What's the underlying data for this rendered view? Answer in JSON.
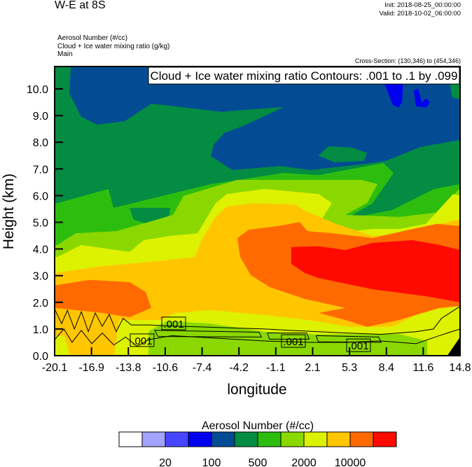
{
  "header": {
    "title": "W-E at 8S",
    "init": "Init: 2018-08-25_00:00:00",
    "valid": "Valid: 2018-10-02_06:00:00",
    "subtitles": [
      "Aerosol Number   (#/cc)",
      "Cloud + Ice water mixing ratio   (g/kg)",
      "Main"
    ],
    "cross_section": "Cross-Section: (130,346) to (454,346)"
  },
  "chart_data": {
    "type": "heatmap",
    "title": "W-E at 8S",
    "xlabel": "longitude",
    "ylabel": "Height (km)",
    "xlim": [
      -20.1,
      14.8
    ],
    "ylim": [
      0,
      10.84
    ],
    "xticks": [
      "-20.1",
      "-16.9",
      "-13.8",
      "-10.6",
      "-7.4",
      "-4.2",
      "-1.1",
      "2.1",
      "5.3",
      "8.4",
      "11.6",
      "14.8"
    ],
    "yticks": [
      "0.0",
      "1.0",
      "2.0",
      "3.0",
      "4.0",
      "5.0",
      "6.0",
      "7.0",
      "8.0",
      "9.0",
      "10.0"
    ],
    "contour_info": "Cloud + Ice water mixing ratio Contours: .001 to .1 by .099",
    "colorbar": {
      "title": "Aerosol Number  (#/cc)",
      "colors": [
        "#ffffff",
        "#a2a2ff",
        "#4646ff",
        "#0000f0",
        "#034c94",
        "#048c42",
        "#2dbd0e",
        "#8ad800",
        "#dcf200",
        "#ffc600",
        "#ff6a00",
        "#ff0a00"
      ],
      "labels": [
        {
          "text": "20",
          "boundary": 2
        },
        {
          "text": "100",
          "boundary": 4
        },
        {
          "text": "500",
          "boundary": 6
        },
        {
          "text": "2000",
          "boundary": 8
        },
        {
          "text": "10000",
          "boundary": 10
        }
      ]
    },
    "background_level": 5,
    "layers": [
      {
        "level": 4,
        "points": [
          [
            -18.71,
            10.84
          ],
          [
            14.8,
            10.84
          ],
          [
            14.8,
            8.09
          ],
          [
            11.37,
            7.82
          ],
          [
            8.41,
            7.3
          ],
          [
            6.8,
            7.2
          ],
          [
            1.9,
            6.96
          ],
          [
            -0.63,
            7.11
          ],
          [
            -4.79,
            6.96
          ],
          [
            -6.66,
            7.48
          ],
          [
            -6.42,
            7.9
          ],
          [
            -5.51,
            8.35
          ],
          [
            -3.88,
            8.61
          ],
          [
            -0.39,
            9.32
          ],
          [
            -3.88,
            9.21
          ],
          [
            -5.75,
            9.14
          ],
          [
            -11.78,
            9.45
          ],
          [
            -14.07,
            8.79
          ],
          [
            -16.42,
            8.66
          ],
          [
            -17.81,
            8.95
          ],
          [
            -18.83,
            9.84
          ],
          [
            -18.71,
            10.79
          ]
        ]
      },
      {
        "level": 5,
        "points": [
          [
            2.6,
            7.5
          ],
          [
            3.5,
            7.85
          ],
          [
            5.5,
            7.8
          ],
          [
            6.8,
            7.6
          ],
          [
            6.5,
            7.3
          ],
          [
            4.0,
            7.25
          ]
        ]
      },
      {
        "level": 5,
        "points": [
          [
            14.0,
            10.84
          ],
          [
            14.8,
            10.84
          ],
          [
            14.8,
            9.6
          ],
          [
            14.1,
            9.7
          ],
          [
            13.9,
            10.3
          ]
        ]
      },
      {
        "level": 3,
        "points": [
          [
            8.2,
            10.3
          ],
          [
            9.9,
            10.3
          ],
          [
            9.8,
            9.5
          ],
          [
            9.5,
            9.3
          ],
          [
            9.0,
            9.4
          ]
        ]
      },
      {
        "level": 3,
        "points": [
          [
            10.8,
            9.95
          ],
          [
            11.2,
            10.0
          ],
          [
            11.5,
            9.5
          ],
          [
            11.9,
            9.65
          ],
          [
            12.2,
            9.5
          ],
          [
            11.9,
            9.3
          ],
          [
            11.0,
            9.35
          ]
        ]
      },
      {
        "level": 6,
        "points": [
          [
            -20.1,
            5.72
          ],
          [
            -19.86,
            5.72
          ],
          [
            -15.46,
            6.25
          ],
          [
            -15.04,
            5.54
          ],
          [
            -10.15,
            6.06
          ],
          [
            -6.66,
            6.43
          ],
          [
            -0.39,
            6.85
          ],
          [
            2.63,
            6.77
          ],
          [
            8.17,
            7.22
          ],
          [
            9.08,
            6.85
          ],
          [
            7.27,
            5.72
          ],
          [
            4.92,
            5.12
          ],
          [
            8.96,
            5.46
          ],
          [
            12.57,
            6.25
          ],
          [
            14.8,
            6.43
          ],
          [
            14.8,
            0
          ],
          [
            -20.1,
            0
          ]
        ]
      },
      {
        "level": 5,
        "points": [
          [
            -13.65,
            5.54
          ],
          [
            -10.15,
            5.54
          ],
          [
            -10.3,
            5.1
          ],
          [
            -11.8,
            4.9
          ],
          [
            -13.3,
            5.1
          ]
        ]
      },
      {
        "level": 7,
        "points": [
          [
            -20.1,
            4.15
          ],
          [
            -19.86,
            4.15
          ],
          [
            -18.29,
            4.59
          ],
          [
            -14.8,
            4.67
          ],
          [
            -12.02,
            5.01
          ],
          [
            -9.91,
            5.28
          ],
          [
            -9.0,
            5.99
          ],
          [
            -4.37,
            6.59
          ],
          [
            2.63,
            6.59
          ],
          [
            6.3,
            6.59
          ],
          [
            7.69,
            6.43
          ],
          [
            6.79,
            5.72
          ],
          [
            4.92,
            5.28
          ],
          [
            9.56,
            5.2
          ],
          [
            13.05,
            5.38
          ],
          [
            14.8,
            6.3
          ],
          [
            14.8,
            0
          ],
          [
            -20.1,
            0
          ]
        ]
      },
      {
        "level": 8,
        "points": [
          [
            -20.1,
            3.7
          ],
          [
            -19.86,
            3.7
          ],
          [
            -17.81,
            4.15
          ],
          [
            -13.65,
            3.89
          ],
          [
            -12.44,
            4.33
          ],
          [
            -10.15,
            4.49
          ],
          [
            -7.8,
            4.59
          ],
          [
            -6.24,
            5.72
          ],
          [
            -5.27,
            6.06
          ],
          [
            -2.02,
            6.25
          ],
          [
            2.63,
            6.06
          ],
          [
            3.77,
            5.72
          ],
          [
            2.63,
            4.94
          ],
          [
            3.77,
            4.59
          ],
          [
            7.27,
            4.75
          ],
          [
            9.56,
            4.75
          ],
          [
            11.85,
            4.94
          ],
          [
            14.2,
            6.06
          ],
          [
            14.8,
            6.0
          ],
          [
            14.8,
            0
          ],
          [
            -20.1,
            0
          ]
        ]
      },
      {
        "level": 7,
        "points": [
          [
            -12.02,
            0
          ],
          [
            -12.02,
            0.92
          ],
          [
            -10.39,
            1.3
          ],
          [
            -6.66,
            1.2
          ],
          [
            -2.02,
            0.9
          ],
          [
            2.32,
            0.8
          ],
          [
            9.56,
            0.81
          ],
          [
            11.97,
            0.55
          ],
          [
            11.97,
            0
          ]
        ]
      },
      {
        "level": 9,
        "points": [
          [
            -20.1,
            3.1
          ],
          [
            -15.94,
            3.36
          ],
          [
            -11.3,
            3.54
          ],
          [
            -8.04,
            3.7
          ],
          [
            -7.38,
            4.41
          ],
          [
            -6.24,
            5.2
          ],
          [
            -5.27,
            5.59
          ],
          [
            -3.1,
            5.72
          ],
          [
            0.52,
            5.67
          ],
          [
            1.72,
            5.38
          ],
          [
            4.13,
            4.94
          ],
          [
            7.27,
            4.49
          ],
          [
            10.16,
            4.59
          ],
          [
            13.05,
            4.94
          ],
          [
            14.8,
            5.12
          ],
          [
            14.8,
            1.86
          ],
          [
            11.85,
            1.71
          ],
          [
            8.96,
            1.08
          ],
          [
            5.34,
            1.08
          ],
          [
            1.72,
            1.34
          ],
          [
            -1.9,
            1.52
          ],
          [
            -6.72,
            1.71
          ],
          [
            -9.73,
            1.6
          ],
          [
            -10.94,
            1.34
          ],
          [
            -14.55,
            1.34
          ],
          [
            -14.97,
            0
          ],
          [
            -18.77,
            0
          ],
          [
            -19.26,
            0.74
          ],
          [
            -20.1,
            0.74
          ]
        ]
      },
      {
        "level": 10,
        "points": [
          [
            -20.1,
            2.65
          ],
          [
            -19.86,
            2.65
          ],
          [
            -17.09,
            2.84
          ],
          [
            -13.65,
            2.76
          ],
          [
            -12.26,
            2.39
          ],
          [
            -11.78,
            1.79
          ],
          [
            -13.65,
            1.44
          ],
          [
            -15.94,
            1.6
          ],
          [
            -18.29,
            1.71
          ],
          [
            -20.1,
            1.79
          ]
        ]
      },
      {
        "level": 10,
        "points": [
          [
            -4.37,
            4.41
          ],
          [
            -3.4,
            4.72
          ],
          [
            -0.87,
            4.86
          ],
          [
            1.0,
            5.01
          ],
          [
            1.66,
            4.67
          ],
          [
            3.77,
            4.59
          ],
          [
            7.27,
            4.41
          ],
          [
            10.7,
            4.75
          ],
          [
            12.81,
            4.94
          ],
          [
            14.8,
            4.86
          ],
          [
            14.8,
            1.86
          ],
          [
            13.05,
            1.79
          ],
          [
            9.56,
            1.34
          ],
          [
            6.79,
            1.08
          ],
          [
            4.92,
            1.34
          ],
          [
            2.63,
            1.6
          ],
          [
            4.92,
            1.79
          ],
          [
            1.42,
            2.13
          ],
          [
            -1.59,
            2.57
          ],
          [
            -3.22,
            3.02
          ],
          [
            -4.13,
            3.7
          ]
        ]
      },
      {
        "level": 11,
        "points": [
          [
            0.27,
            4.07
          ],
          [
            2.63,
            4.1
          ],
          [
            4.92,
            3.96
          ],
          [
            7.27,
            4.23
          ],
          [
            10.7,
            4.33
          ],
          [
            13.05,
            4.15
          ],
          [
            14.8,
            3.96
          ],
          [
            14.8,
            2.0
          ],
          [
            11.85,
            2.23
          ],
          [
            7.27,
            2.49
          ],
          [
            2.63,
            2.91
          ],
          [
            1.42,
            3.1
          ],
          [
            0.27,
            3.44
          ]
        ]
      }
    ],
    "missing_region": [
      [
        13.7,
        0
      ],
      [
        14.8,
        0
      ],
      [
        14.8,
        0.7
      ]
    ],
    "contour_lines": [
      [
        [
          -20.1,
          1.75
        ],
        [
          -19.5,
          1.2
        ],
        [
          -19,
          1.7
        ],
        [
          -18.4,
          1.0
        ],
        [
          -17.8,
          1.65
        ],
        [
          -17.2,
          0.9
        ],
        [
          -16.6,
          1.6
        ],
        [
          -16,
          1.1
        ],
        [
          -15.4,
          1.55
        ],
        [
          -14.8,
          0.9
        ],
        [
          -14.2,
          1.4
        ],
        [
          -13.5,
          1.15
        ],
        [
          -12,
          1.15
        ],
        [
          -10.5,
          1.12
        ],
        [
          -2,
          1.0
        ],
        [
          0,
          0.95
        ],
        [
          5,
          0.85
        ],
        [
          8,
          0.8
        ],
        [
          11,
          0.9
        ],
        [
          12.5,
          1.0
        ],
        [
          13.2,
          1.4
        ],
        [
          14.8,
          1.85
        ]
      ],
      [
        [
          -20.1,
          0.6
        ],
        [
          -19.3,
          1.0
        ],
        [
          -18.6,
          0.5
        ],
        [
          -17.8,
          0.95
        ],
        [
          -16.9,
          0.45
        ],
        [
          -16,
          0.85
        ],
        [
          -15,
          0.4
        ],
        [
          -14,
          0.7
        ],
        [
          -13,
          0.35
        ],
        [
          -12,
          0.6
        ],
        [
          -10,
          0.75
        ],
        [
          -2,
          0.55
        ],
        [
          2,
          0.5
        ],
        [
          5,
          0.5
        ],
        [
          8,
          0.55
        ],
        [
          11,
          0.45
        ],
        [
          13,
          0.75
        ],
        [
          14.8,
          1.0
        ]
      ],
      [
        [
          -11.5,
          0.95
        ],
        [
          -2.5,
          0.88
        ],
        [
          -2.3,
          0.7
        ],
        [
          -11.2,
          0.72
        ],
        [
          -11.5,
          0.95
        ]
      ],
      [
        [
          -1.8,
          0.85
        ],
        [
          1.6,
          0.85
        ],
        [
          1.8,
          0.62
        ],
        [
          -1.6,
          0.62
        ],
        [
          -1.8,
          0.85
        ]
      ],
      [
        [
          2.4,
          0.75
        ],
        [
          7.8,
          0.7
        ],
        [
          8.0,
          0.5
        ],
        [
          2.6,
          0.52
        ],
        [
          2.4,
          0.75
        ]
      ]
    ],
    "contour_labels": [
      {
        "text": ".001",
        "lon": -9.85,
        "h": 1.21
      },
      {
        "text": ".001",
        "lon": -12.57,
        "h": 0.58
      },
      {
        "text": ".001",
        "lon": 0.45,
        "h": 0.55
      },
      {
        "text": ".001",
        "lon": 6.06,
        "h": 0.39
      }
    ]
  }
}
